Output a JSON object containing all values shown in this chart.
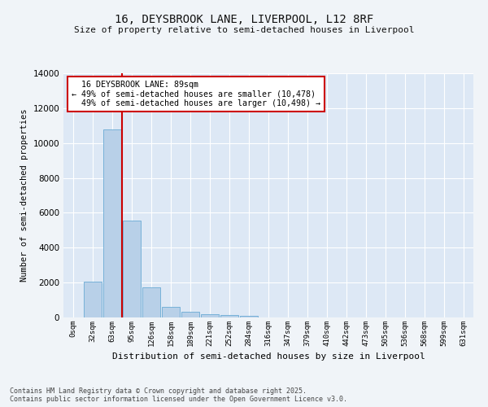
{
  "title_line1": "16, DEYSBROOK LANE, LIVERPOOL, L12 8RF",
  "title_line2": "Size of property relative to semi-detached houses in Liverpool",
  "xlabel": "Distribution of semi-detached houses by size in Liverpool",
  "ylabel": "Number of semi-detached properties",
  "categories": [
    "0sqm",
    "32sqm",
    "63sqm",
    "95sqm",
    "126sqm",
    "158sqm",
    "189sqm",
    "221sqm",
    "252sqm",
    "284sqm",
    "316sqm",
    "347sqm",
    "379sqm",
    "410sqm",
    "442sqm",
    "473sqm",
    "505sqm",
    "536sqm",
    "568sqm",
    "599sqm",
    "631sqm"
  ],
  "values": [
    0,
    2050,
    10800,
    5550,
    1750,
    630,
    320,
    200,
    130,
    90,
    0,
    0,
    0,
    0,
    0,
    0,
    0,
    0,
    0,
    0,
    0
  ],
  "bar_color": "#b8d0e8",
  "bar_edge_color": "#6aaad4",
  "vline_color": "#cc0000",
  "property_size": "89sqm",
  "property_name": "16 DEYSBROOK LANE",
  "pct_smaller": 49,
  "count_smaller": 10478,
  "pct_larger": 49,
  "count_larger": 10498,
  "ylim": [
    0,
    14000
  ],
  "yticks": [
    0,
    2000,
    4000,
    6000,
    8000,
    10000,
    12000,
    14000
  ],
  "background_color": "#dde8f5",
  "grid_color": "#ffffff",
  "footer_line1": "Contains HM Land Registry data © Crown copyright and database right 2025.",
  "footer_line2": "Contains public sector information licensed under the Open Government Licence v3.0."
}
